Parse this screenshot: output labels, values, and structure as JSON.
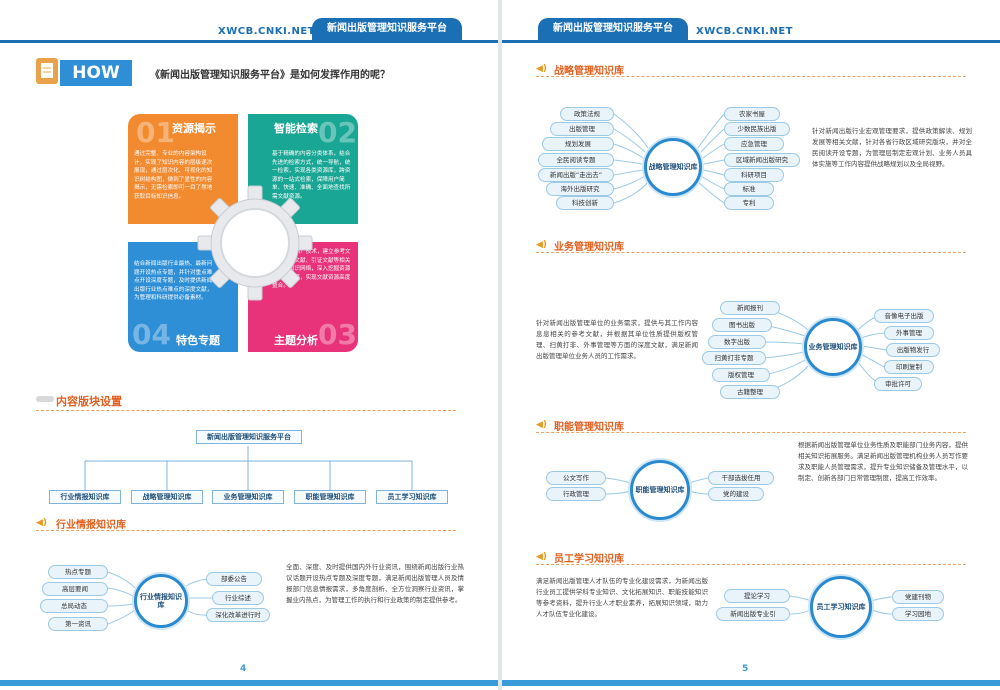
{
  "header": {
    "url_left": "XWCB.CNKI.NET",
    "platform_left": "新闻出版管理知识服务平台",
    "platform_right": "新闻出版管理知识服务平台",
    "url_right": "XWCB.CNKI.NET"
  },
  "left": {
    "how_label": "HOW",
    "how_question": "《新闻出版管理知识服务平台》是如何发挥作用的呢？",
    "quadrants": [
      {
        "title": "资源揭示",
        "num": "01",
        "color": "#f28a2f",
        "text": "通过完整、专业的内容架构设计，实现了知识内容的层级递次展现，通过层次化、可视化的知识树结构图，做到了显性的内容揭示，无需检索即可一目了然地获取目标知识信息。"
      },
      {
        "title": "智能检索",
        "num": "02",
        "color": "#1aa694",
        "text": "基于精确的内容分类体系，结合先进的检索方式，统一导航，统一检索，实现各类资源库，跨资源的一站式检索，保障用户简单、快速、准确、全面地查找所需文献资源。"
      },
      {
        "title": "特色专题",
        "num": "04",
        "color": "#2e8fd6",
        "text": "结合新闻出版行业最热、最新问题开设热点专题，并针对重点难点开设深度专题，及时提供新闻出版行业热点难点的深度文献，为管理和科研提供必备素材。"
      },
      {
        "title": "主题分析",
        "num": "03",
        "color": "#e8337a",
        "text": "通过“知网节”技术，建立参考文献、相似文献、引证文献等相关文献的知识网络，深入挖掘资源的潜在价值，实现文献资源高度整合。"
      }
    ],
    "content_section_title": "内容版块设置",
    "tree_root": "新闻出版管理知识服务平台",
    "tree_children": [
      "行业情报知识库",
      "战略管理知识库",
      "业务管理知识库",
      "职能管理知识库",
      "员工学习知识库"
    ],
    "intel": {
      "title": "行业情报知识库",
      "hub": "行业情报知识库",
      "left_items": [
        "热点专题",
        "高层要闻",
        "总局动态",
        "第一资讯"
      ],
      "right_items": [
        "部委公告",
        "行业综述",
        "深化改革进行时"
      ],
      "text": "全面、深度、及时提供国内外行业资讯，围绕新闻出版行业热议话题开设热点专题及深度专题，满足新闻出版管理人员及情报部门信息情报需求，多角度剖析、全方位洞察行业资讯，掌握业内热点，为管理工作的执行和行业政策的制定提供参考。"
    },
    "page_number": "4"
  },
  "right": {
    "strategy": {
      "title": "战略管理知识库",
      "hub": "战略管理知识库",
      "left_items": [
        "政策法规",
        "出版管理",
        "规划发展",
        "全民阅读专题",
        "新闻出版“走出去”",
        "海外出版研究",
        "科技创新"
      ],
      "right_items": [
        "农家书屋",
        "少数民族出版",
        "应急管理",
        "区域新闻出版研究",
        "科研项目",
        "标准",
        "专利"
      ],
      "text": "针对新闻出版行业宏观管理要求，提供政策解读、规划发展等相关文献，针对各省行政区域研究版块，并对全民阅读开设专题，为管理层制定宏观计划、业务人员具体实施等工作内容提供战略规划以及全局视野。"
    },
    "business": {
      "title": "业务管理知识库",
      "hub": "业务管理知识库",
      "left_items": [
        "新闻报刊",
        "图书出版",
        "数字出版",
        "扫黄打非专题",
        "版权管理",
        "古籍整理"
      ],
      "right_items": [
        "音像电子出版",
        "外事管理",
        "出版物发行",
        "印刷复制",
        "审批许可"
      ],
      "text": "针对新闻出版管理单位的业务需求，提供与其工作内容息息相关的参考文献，并根据其单位性质提供版权管理、扫黄打非、外事管理等方面的深度文献，满足新闻出版管理单位业务人员的工作需求。"
    },
    "function": {
      "title": "职能管理知识库",
      "hub": "职能管理知识库",
      "left_items": [
        "公文写作",
        "行政管理"
      ],
      "right_items": [
        "干部选拔任用",
        "党的建设"
      ],
      "text": "根据新闻出版管理单位业务性质及职能部门业务内容，提供相关知识拓展服务。满足新闻出版管理机构业务人员写作要求及职能人员管理需求，提升专业知识储备及管理水平，以制定、创新各部门日常管理制度，提高工作效率。"
    },
    "staff": {
      "title": "员工学习知识库",
      "hub": "员工学习知识库",
      "left_items": [
        "提论学习",
        "新闻出版专业引"
      ],
      "right_items": [
        "党建刊物",
        "学习园地"
      ],
      "text": "满足新闻出版管理人才队伍的专业化建设需求，为新闻出版行业员工提供学科专业知识、文化拓展知识、职能技能知识等参考资料，提升行业人才职业素养，拓展知识领域，助力人才队伍专业化建设。"
    },
    "page_number": "5"
  },
  "colors": {
    "brand_blue": "#1b6fb5",
    "accent_orange": "#e06020",
    "light_blue": "#3a9bd9"
  }
}
